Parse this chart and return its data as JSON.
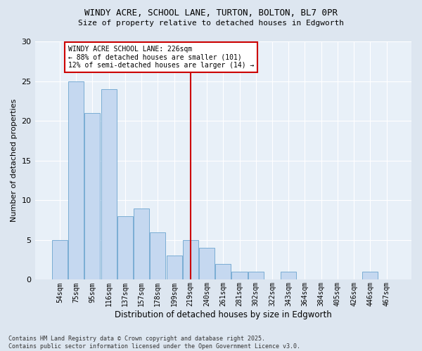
{
  "title1": "WINDY ACRE, SCHOOL LANE, TURTON, BOLTON, BL7 0PR",
  "title2": "Size of property relative to detached houses in Edgworth",
  "xlabel": "Distribution of detached houses by size in Edgworth",
  "ylabel": "Number of detached properties",
  "categories": [
    "54sqm",
    "75sqm",
    "95sqm",
    "116sqm",
    "137sqm",
    "157sqm",
    "178sqm",
    "199sqm",
    "219sqm",
    "240sqm",
    "261sqm",
    "281sqm",
    "302sqm",
    "322sqm",
    "343sqm",
    "364sqm",
    "384sqm",
    "405sqm",
    "426sqm",
    "446sqm",
    "467sqm"
  ],
  "values": [
    5,
    25,
    21,
    24,
    8,
    9,
    6,
    3,
    5,
    4,
    2,
    1,
    1,
    0,
    1,
    0,
    0,
    0,
    0,
    1,
    0
  ],
  "bar_color": "#c5d8f0",
  "bar_edge_color": "#7aadd4",
  "vline_index": 8,
  "vline_color": "#cc0000",
  "annotation_text": "WINDY ACRE SCHOOL LANE: 226sqm\n← 88% of detached houses are smaller (101)\n12% of semi-detached houses are larger (14) →",
  "annotation_box_color": "#ffffff",
  "annotation_box_edge": "#cc0000",
  "ylim": [
    0,
    30
  ],
  "yticks": [
    0,
    5,
    10,
    15,
    20,
    25,
    30
  ],
  "footnote": "Contains HM Land Registry data © Crown copyright and database right 2025.\nContains public sector information licensed under the Open Government Licence v3.0.",
  "bg_color": "#dde6f0",
  "plot_bg_color": "#e8f0f8",
  "grid_color": "#ffffff"
}
